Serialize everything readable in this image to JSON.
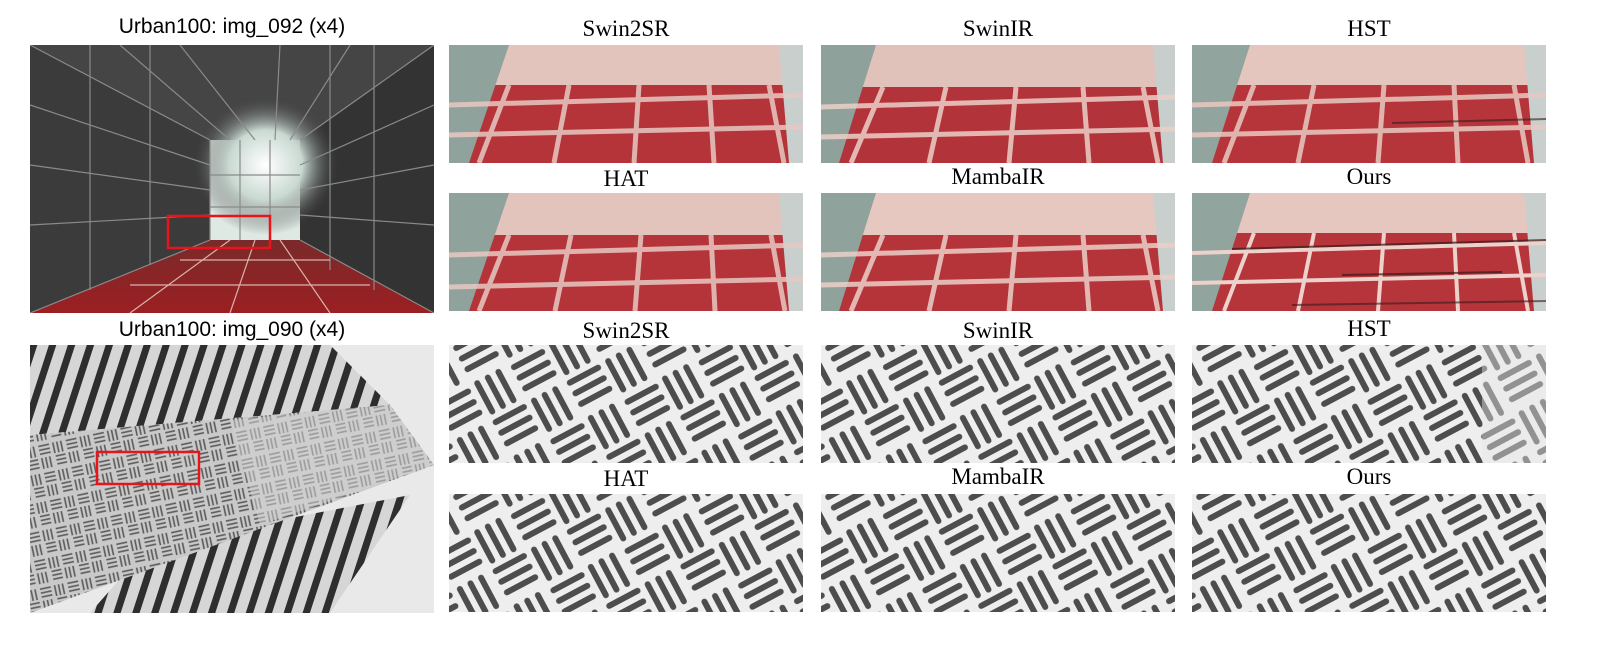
{
  "rows": [
    {
      "overview_title": "Urban100: img_092 (x4)",
      "methods": [
        "Swin2SR",
        "SwinIR",
        "HST",
        "HAT",
        "MambaIR",
        "Ours"
      ]
    },
    {
      "overview_title": "Urban100: img_090 (x4)",
      "methods": [
        "Swin2SR",
        "SwinIR",
        "HST",
        "HAT",
        "MambaIR",
        "Ours"
      ]
    }
  ],
  "colors": {
    "highlight_box": "#e8141c",
    "floor_red": "#b4343a",
    "grout": "#e8c9c2",
    "stripe_dark": "#4d4d4d",
    "stripe_light": "#eeeeee"
  }
}
